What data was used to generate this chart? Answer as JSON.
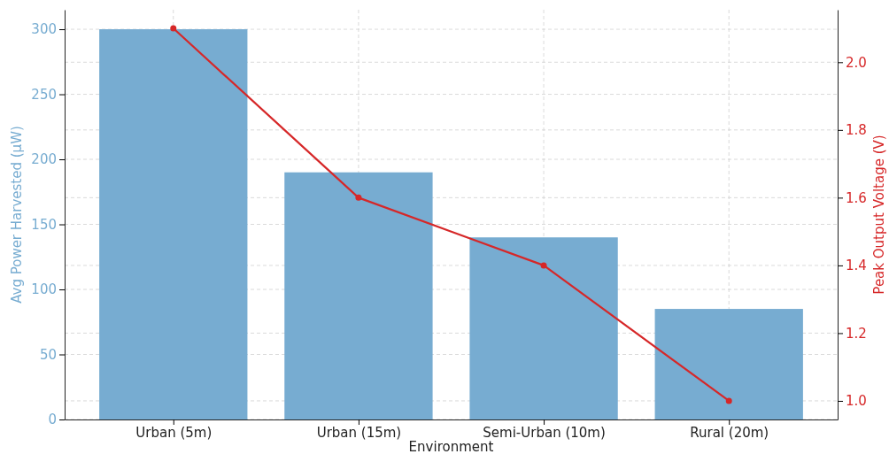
{
  "chart_data": {
    "type": "bar",
    "xlabel": "Environment",
    "ylabel": "Avg Power Harvested (µW)",
    "y2label": "Peak Output Voltage (V)",
    "categories": [
      "Urban (5m)",
      "Urban (15m)",
      "Semi-Urban (10m)",
      "Rural (20m)"
    ],
    "series": [
      {
        "color": "#77acd1",
        "values": [
          300,
          190,
          140,
          85
        ]
      },
      {
        "type": "line",
        "axis": "y2",
        "color": "#d62728",
        "values": [
          2.1,
          1.6,
          1.4,
          1.0
        ],
        "marker": "circle"
      }
    ],
    "ylim": [
      0,
      315
    ],
    "yticks": [
      0,
      50,
      100,
      150,
      200,
      250,
      300
    ],
    "y2lim": [
      0.945,
      2.155
    ],
    "y2ticks": [
      {
        "value": 1,
        "label": "1.0"
      },
      1.2,
      1.4,
      1.6,
      1.8,
      {
        "value": 2,
        "label": "2.0"
      }
    ],
    "grid": true
  }
}
